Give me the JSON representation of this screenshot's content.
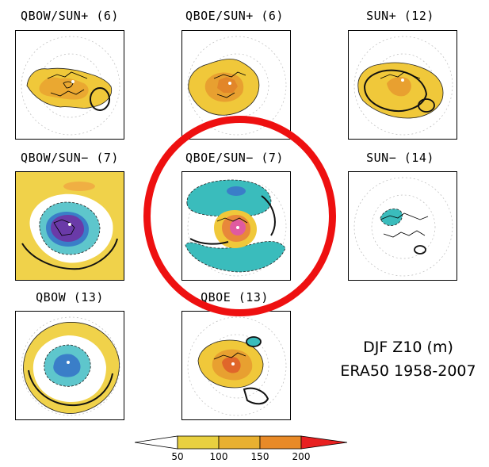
{
  "panels": [
    {
      "id": "qbow-sun-plus",
      "title": "QBOW/SUN+ (6)"
    },
    {
      "id": "qboe-sun-plus",
      "title": "QBOE/SUN+ (6)"
    },
    {
      "id": "sun-plus",
      "title": "SUN+ (12)"
    },
    {
      "id": "qbow-sun-minus",
      "title": "QBOW/SUN− (7)"
    },
    {
      "id": "qboe-sun-minus",
      "title": "QBOE/SUN− (7)"
    },
    {
      "id": "sun-minus",
      "title": "SUN− (14)"
    },
    {
      "id": "qbow",
      "title": "QBOW (13)"
    },
    {
      "id": "qboe",
      "title": "QBOE (13)"
    }
  ],
  "label": {
    "line1": "DJF Z10 (m)",
    "line2": "ERA50 1958-2007"
  },
  "colorbar": {
    "ticks": [
      "50",
      "100",
      "150",
      "200"
    ],
    "colors": [
      "#ffffff",
      "#e8d040",
      "#e8b030",
      "#e88a28",
      "#e85a28",
      "#e82020"
    ]
  },
  "highlight": {
    "color": "#ee1010",
    "target": "QBOE/SUN− (7)"
  }
}
